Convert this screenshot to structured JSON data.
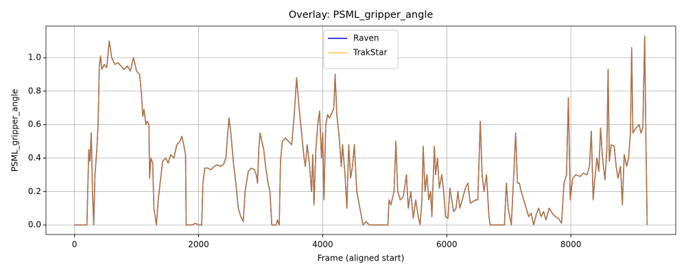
{
  "chart_data": {
    "type": "line",
    "title": "Overlay: PSML_gripper_angle",
    "x_label": "Frame (aligned start)",
    "y_label": "PSML_gripper_angle",
    "x": [
      0,
      200,
      230,
      250,
      270,
      290,
      310,
      330,
      360,
      380,
      400,
      420,
      440,
      480,
      520,
      560,
      600,
      650,
      700,
      750,
      800,
      850,
      900,
      950,
      1000,
      1050,
      1080,
      1100,
      1120,
      1150,
      1170,
      1200,
      1210,
      1230,
      1260,
      1280,
      1300,
      1320,
      1350,
      1380,
      1420,
      1470,
      1510,
      1550,
      1600,
      1650,
      1700,
      1730,
      1760,
      1790,
      1800,
      1850,
      1900,
      1950,
      2000,
      2050,
      2070,
      2100,
      2150,
      2200,
      2250,
      2300,
      2350,
      2400,
      2440,
      2470,
      2490,
      2520,
      2560,
      2600,
      2640,
      2680,
      2720,
      2750,
      2800,
      2850,
      2900,
      2930,
      2950,
      2970,
      2990,
      3020,
      3050,
      3080,
      3120,
      3150,
      3180,
      3250,
      3270,
      3300,
      3320,
      3350,
      3400,
      3450,
      3500,
      3540,
      3580,
      3620,
      3660,
      3700,
      3720,
      3750,
      3790,
      3820,
      3840,
      3860,
      3890,
      3920,
      3950,
      3980,
      4000,
      4020,
      4050,
      4080,
      4110,
      4150,
      4180,
      4200,
      4230,
      4260,
      4300,
      4320,
      4360,
      4390,
      4420,
      4450,
      4480,
      4510,
      4550,
      4600,
      4650,
      4700,
      4750,
      4800,
      4900,
      5000,
      5050,
      5070,
      5100,
      5150,
      5180,
      5210,
      5250,
      5300,
      5350,
      5380,
      5420,
      5460,
      5500,
      5540,
      5570,
      5600,
      5620,
      5650,
      5680,
      5710,
      5740,
      5760,
      5800,
      5820,
      5850,
      5880,
      5920,
      5950,
      5980,
      6020,
      6050,
      6080,
      6110,
      6150,
      6180,
      6210,
      6250,
      6300,
      6340,
      6380,
      6420,
      6470,
      6500,
      6540,
      6570,
      6600,
      6640,
      6680,
      6700,
      6800,
      6900,
      6930,
      6960,
      6990,
      7040,
      7080,
      7110,
      7140,
      7170,
      7200,
      7240,
      7280,
      7320,
      7360,
      7400,
      7440,
      7480,
      7520,
      7560,
      7600,
      7650,
      7700,
      7750,
      7800,
      7850,
      7890,
      7930,
      7960,
      7990,
      8030,
      8080,
      8150,
      8200,
      8260,
      8300,
      8330,
      8360,
      8380,
      8420,
      8450,
      8480,
      8510,
      8550,
      8580,
      8600,
      8620,
      8650,
      8700,
      8730,
      8760,
      8800,
      8830,
      8860,
      8900,
      8930,
      8960,
      8980,
      9000,
      9050,
      9100,
      9130,
      9160,
      9190,
      9210,
      9230
    ],
    "series": [
      {
        "name": "Raven",
        "color": "#0000cc",
        "values": [
          0,
          0,
          0.45,
          0.38,
          0.55,
          0.2,
          0,
          0.3,
          0.45,
          0.6,
          0.95,
          1.01,
          0.93,
          0.96,
          0.94,
          1.1,
          1.0,
          0.96,
          0.97,
          0.95,
          0.93,
          0.95,
          0.92,
          1.0,
          0.92,
          0.9,
          0.78,
          0.65,
          0.69,
          0.6,
          0.62,
          0.6,
          0.28,
          0.4,
          0.37,
          0.1,
          0.05,
          0,
          0.15,
          0.25,
          0.38,
          0.4,
          0.37,
          0.42,
          0.4,
          0.48,
          0.5,
          0.53,
          0.48,
          0.42,
          0,
          0,
          0,
          0.01,
          0,
          0,
          0.25,
          0.34,
          0.34,
          0.33,
          0.35,
          0.36,
          0.35,
          0.36,
          0.4,
          0.55,
          0.64,
          0.55,
          0.38,
          0.25,
          0.1,
          0.05,
          0.02,
          0.2,
          0.32,
          0.34,
          0.33,
          0.3,
          0.25,
          0.45,
          0.55,
          0.5,
          0.45,
          0.35,
          0.25,
          0.2,
          0,
          0,
          0.03,
          0,
          0.38,
          0.5,
          0.52,
          0.5,
          0.48,
          0.65,
          0.88,
          0.7,
          0.55,
          0.4,
          0.35,
          0.48,
          0.35,
          0.2,
          0.42,
          0.12,
          0.45,
          0.6,
          0.68,
          0.4,
          0.55,
          0.15,
          0.6,
          0.66,
          0.64,
          0.67,
          0.7,
          0.9,
          0.65,
          0.55,
          0.35,
          0.48,
          0.3,
          0.1,
          0.48,
          0.28,
          0.35,
          0.48,
          0.2,
          0.1,
          0,
          0.02,
          0,
          0,
          0,
          0,
          0,
          0.15,
          0.12,
          0.2,
          0.5,
          0.2,
          0.15,
          0.17,
          0.3,
          0.1,
          0.2,
          0.04,
          0.15,
          0.05,
          0,
          0.15,
          0.47,
          0.2,
          0.3,
          0.15,
          0.2,
          0.05,
          0.47,
          0.3,
          0.4,
          0.22,
          0.3,
          0.2,
          0.05,
          0.04,
          0.22,
          0.15,
          0.08,
          0.1,
          0.2,
          0.1,
          0.15,
          0.22,
          0.25,
          0.13,
          0.14,
          0.15,
          0.15,
          0.62,
          0.3,
          0.2,
          0.3,
          0.05,
          0,
          0,
          0,
          0,
          0.25,
          0.1,
          0,
          0.3,
          0.55,
          0.25,
          0.25,
          0.2,
          0.15,
          0.1,
          0.05,
          0.07,
          0,
          0.06,
          0.1,
          0.05,
          0.08,
          0.03,
          0.1,
          0.07,
          0.05,
          0.04,
          0.01,
          0.25,
          0.3,
          0.76,
          0.15,
          0.28,
          0.3,
          0.29,
          0.31,
          0.3,
          0.35,
          0.56,
          0.15,
          0.25,
          0.4,
          0.32,
          0.58,
          0.4,
          0.27,
          0.45,
          0.93,
          0.38,
          0.48,
          0.47,
          0.35,
          0.28,
          0.35,
          0.12,
          0.42,
          0.35,
          0.4,
          0.55,
          1.06,
          0.55,
          0.58,
          0.6,
          0.55,
          0.58,
          1.13,
          0.5,
          0
        ]
      },
      {
        "name": "TrakStar",
        "color": "#ffa500",
        "values": [
          0,
          0,
          0.45,
          0.38,
          0.55,
          0.2,
          0,
          0.3,
          0.45,
          0.6,
          0.95,
          1.01,
          0.93,
          0.96,
          0.94,
          1.1,
          1.0,
          0.96,
          0.97,
          0.95,
          0.93,
          0.95,
          0.92,
          1.0,
          0.92,
          0.9,
          0.78,
          0.65,
          0.69,
          0.6,
          0.62,
          0.6,
          0.28,
          0.4,
          0.37,
          0.1,
          0.05,
          0,
          0.15,
          0.25,
          0.38,
          0.4,
          0.37,
          0.42,
          0.4,
          0.48,
          0.5,
          0.53,
          0.48,
          0.42,
          0,
          0,
          0,
          0.01,
          0,
          0,
          0.25,
          0.34,
          0.34,
          0.33,
          0.35,
          0.36,
          0.35,
          0.36,
          0.4,
          0.55,
          0.64,
          0.55,
          0.38,
          0.25,
          0.1,
          0.05,
          0.02,
          0.2,
          0.32,
          0.34,
          0.33,
          0.3,
          0.25,
          0.45,
          0.55,
          0.5,
          0.45,
          0.35,
          0.25,
          0.2,
          0,
          0,
          0.03,
          0,
          0.38,
          0.5,
          0.52,
          0.5,
          0.48,
          0.65,
          0.88,
          0.7,
          0.55,
          0.4,
          0.35,
          0.48,
          0.35,
          0.2,
          0.42,
          0.12,
          0.45,
          0.6,
          0.68,
          0.4,
          0.55,
          0.15,
          0.6,
          0.66,
          0.64,
          0.67,
          0.7,
          0.9,
          0.65,
          0.55,
          0.35,
          0.48,
          0.3,
          0.1,
          0.48,
          0.28,
          0.35,
          0.48,
          0.2,
          0.1,
          0,
          0.02,
          0,
          0,
          0,
          0,
          0,
          0.15,
          0.12,
          0.2,
          0.5,
          0.2,
          0.15,
          0.17,
          0.3,
          0.1,
          0.2,
          0.04,
          0.15,
          0.05,
          0,
          0.15,
          0.47,
          0.2,
          0.3,
          0.15,
          0.2,
          0.05,
          0.47,
          0.3,
          0.4,
          0.22,
          0.3,
          0.2,
          0.05,
          0.04,
          0.22,
          0.15,
          0.08,
          0.1,
          0.2,
          0.1,
          0.15,
          0.22,
          0.25,
          0.13,
          0.14,
          0.15,
          0.15,
          0.62,
          0.3,
          0.2,
          0.3,
          0.05,
          0,
          0,
          0,
          0,
          0.25,
          0.1,
          0,
          0.3,
          0.55,
          0.25,
          0.25,
          0.2,
          0.15,
          0.1,
          0.05,
          0.07,
          0,
          0.06,
          0.1,
          0.05,
          0.08,
          0.03,
          0.1,
          0.07,
          0.05,
          0.04,
          0.01,
          0.25,
          0.3,
          0.76,
          0.15,
          0.28,
          0.3,
          0.29,
          0.31,
          0.3,
          0.35,
          0.56,
          0.15,
          0.25,
          0.4,
          0.32,
          0.58,
          0.4,
          0.27,
          0.45,
          0.93,
          0.38,
          0.48,
          0.47,
          0.35,
          0.28,
          0.35,
          0.12,
          0.42,
          0.35,
          0.4,
          0.55,
          1.06,
          0.55,
          0.58,
          0.6,
          0.55,
          0.58,
          1.13,
          0.5,
          0
        ]
      }
    ],
    "xlim": [
      -460,
      9690
    ],
    "ylim": [
      -0.057,
      1.189
    ],
    "xticks": [
      0,
      2000,
      4000,
      6000,
      8000
    ],
    "yticks": [
      {
        "value": 0,
        "label": "0.0"
      },
      0.2,
      0.4,
      0.6,
      0.8,
      {
        "value": 1,
        "label": "1.0"
      }
    ],
    "grid": true,
    "legend": "upper center"
  }
}
